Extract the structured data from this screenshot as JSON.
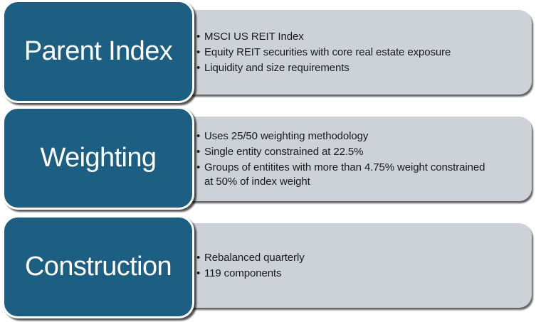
{
  "diagram": {
    "type": "smartart-vertical-box-list",
    "bullet_char": "•",
    "colors": {
      "stage_fill": "#1C5F82",
      "stage_border": "#FFFFFF",
      "panel_fill": "#CDD1D8",
      "bullet_text": "#1A1A1A",
      "title_text": "#FFFFFF",
      "background": "#FFFFFF"
    },
    "sections": [
      {
        "title": "Parent Index",
        "bullets": [
          "MSCI US REIT Index",
          "Equity REIT securities with core real estate exposure",
          "Liquidity and size requirements"
        ]
      },
      {
        "title": "Weighting",
        "bullets": [
          "Uses 25/50 weighting methodology",
          "Single entity constrained at 22.5%",
          "Groups of entitites with more than 4.75% weight constrained\nat 50% of index weight"
        ]
      },
      {
        "title": "Construction",
        "bullets": [
          "Rebalanced quarterly",
          "119 components"
        ]
      }
    ]
  }
}
